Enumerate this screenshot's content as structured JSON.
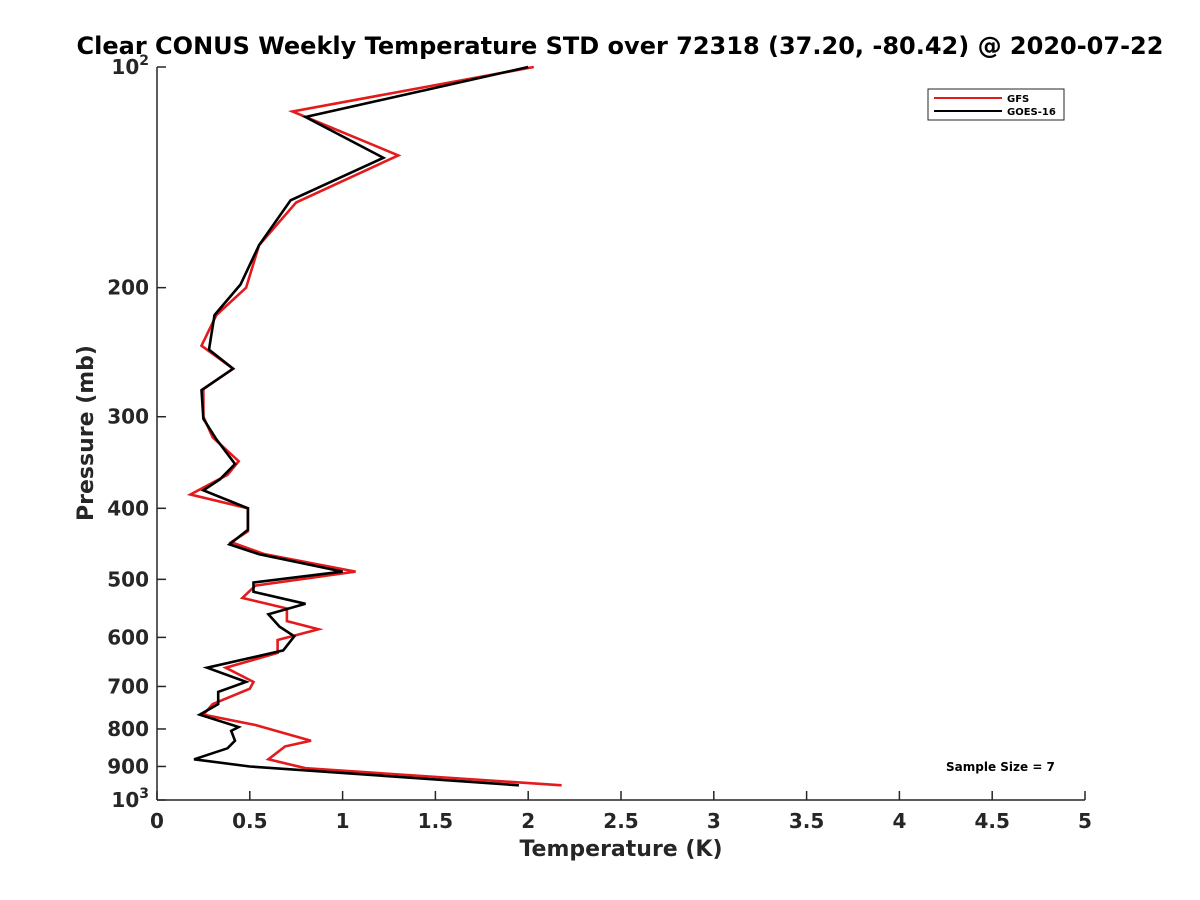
{
  "chart_data": {
    "type": "line",
    "title": "Clear CONUS Weekly Temperature STD over 72318 (37.20, -80.42) @ 2020-07-22",
    "xlabel": "Temperature (K)",
    "ylabel": "Pressure (mb)",
    "xlim": [
      0,
      5
    ],
    "ylim": [
      100,
      1000
    ],
    "y_scale": "log",
    "y_reversed": true,
    "grid": false,
    "legend_position": "top-right",
    "x_ticks": [
      0,
      0.5,
      1,
      1.5,
      2,
      2.5,
      3,
      3.5,
      4,
      4.5,
      5
    ],
    "x_tick_labels": [
      "0",
      "0.5",
      "1",
      "1.5",
      "2",
      "2.5",
      "3",
      "3.5",
      "4",
      "4.5",
      "5"
    ],
    "y_ticks": [
      100,
      200,
      300,
      400,
      500,
      600,
      700,
      800,
      900,
      1000
    ],
    "y_tick_labels": [
      {
        "base": "10",
        "exp": "2"
      },
      {
        "base": "200",
        "exp": ""
      },
      {
        "base": "300",
        "exp": ""
      },
      {
        "base": "400",
        "exp": ""
      },
      {
        "base": "500",
        "exp": ""
      },
      {
        "base": "600",
        "exp": ""
      },
      {
        "base": "700",
        "exp": ""
      },
      {
        "base": "800",
        "exp": ""
      },
      {
        "base": "900",
        "exp": ""
      },
      {
        "base": "10",
        "exp": "3"
      }
    ],
    "annotation": "Sample Size = 7",
    "series": [
      {
        "name": "GFS",
        "color": "#e41a1c",
        "points": [
          [
            2.03,
            100
          ],
          [
            0.73,
            115
          ],
          [
            1.3,
            132
          ],
          [
            0.75,
            153
          ],
          [
            0.55,
            175
          ],
          [
            0.48,
            200
          ],
          [
            0.32,
            218
          ],
          [
            0.24,
            240
          ],
          [
            0.41,
            258
          ],
          [
            0.25,
            275
          ],
          [
            0.25,
            300
          ],
          [
            0.3,
            320
          ],
          [
            0.44,
            345
          ],
          [
            0.38,
            360
          ],
          [
            0.18,
            383
          ],
          [
            0.49,
            400
          ],
          [
            0.49,
            430
          ],
          [
            0.4,
            445
          ],
          [
            0.58,
            462
          ],
          [
            1.07,
            488
          ],
          [
            0.53,
            510
          ],
          [
            0.46,
            530
          ],
          [
            0.7,
            548
          ],
          [
            0.7,
            570
          ],
          [
            0.87,
            585
          ],
          [
            0.65,
            605
          ],
          [
            0.65,
            630
          ],
          [
            0.37,
            660
          ],
          [
            0.52,
            690
          ],
          [
            0.5,
            705
          ],
          [
            0.3,
            740
          ],
          [
            0.25,
            765
          ],
          [
            0.53,
            790
          ],
          [
            0.83,
            830
          ],
          [
            0.69,
            845
          ],
          [
            0.6,
            880
          ],
          [
            0.8,
            905
          ],
          [
            2.18,
            955
          ]
        ]
      },
      {
        "name": "GOES-16",
        "color": "#000000",
        "points": [
          [
            2.0,
            100
          ],
          [
            0.8,
            117
          ],
          [
            1.22,
            133
          ],
          [
            0.72,
            152
          ],
          [
            0.55,
            175
          ],
          [
            0.45,
            198
          ],
          [
            0.31,
            218
          ],
          [
            0.28,
            243
          ],
          [
            0.41,
            258
          ],
          [
            0.24,
            276
          ],
          [
            0.25,
            302
          ],
          [
            0.32,
            322
          ],
          [
            0.42,
            348
          ],
          [
            0.34,
            365
          ],
          [
            0.25,
            378
          ],
          [
            0.49,
            400
          ],
          [
            0.49,
            428
          ],
          [
            0.39,
            448
          ],
          [
            0.55,
            462
          ],
          [
            1.0,
            488
          ],
          [
            0.52,
            505
          ],
          [
            0.52,
            520
          ],
          [
            0.8,
            540
          ],
          [
            0.6,
            558
          ],
          [
            0.66,
            580
          ],
          [
            0.74,
            598
          ],
          [
            0.68,
            625
          ],
          [
            0.27,
            660
          ],
          [
            0.48,
            690
          ],
          [
            0.33,
            712
          ],
          [
            0.33,
            740
          ],
          [
            0.23,
            765
          ],
          [
            0.44,
            795
          ],
          [
            0.4,
            805
          ],
          [
            0.42,
            830
          ],
          [
            0.38,
            850
          ],
          [
            0.2,
            880
          ],
          [
            0.5,
            900
          ],
          [
            1.95,
            955
          ]
        ]
      }
    ]
  }
}
